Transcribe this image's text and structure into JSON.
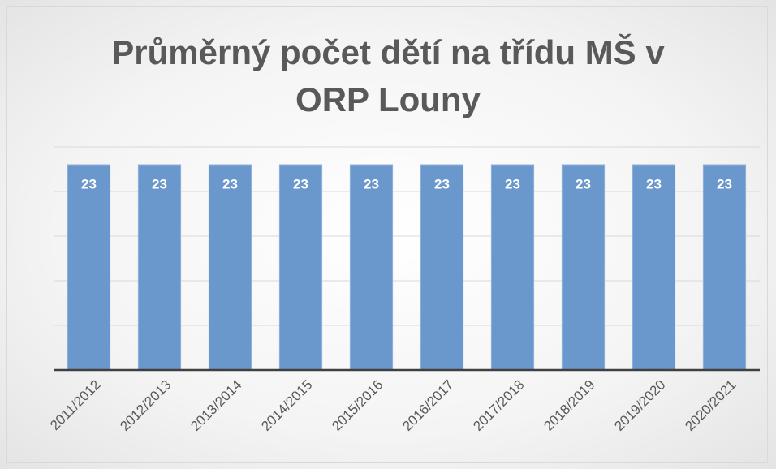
{
  "chart_data": {
    "type": "bar",
    "title": "Průměrný počet dětí na třídu MŠ v ORP Louny",
    "categories": [
      "2011/2012",
      "2012/2013",
      "2013/2014",
      "2014/2015",
      "2015/2016",
      "2016/2017",
      "2017/2018",
      "2018/2019",
      "2019/2020",
      "2020/2021"
    ],
    "values": [
      23,
      23,
      23,
      23,
      23,
      23,
      23,
      23,
      23,
      23
    ],
    "color": "#6b98cc",
    "ylim": [
      0,
      25
    ],
    "yticks": [
      0,
      5,
      10,
      15,
      20,
      25
    ],
    "grid": true
  }
}
